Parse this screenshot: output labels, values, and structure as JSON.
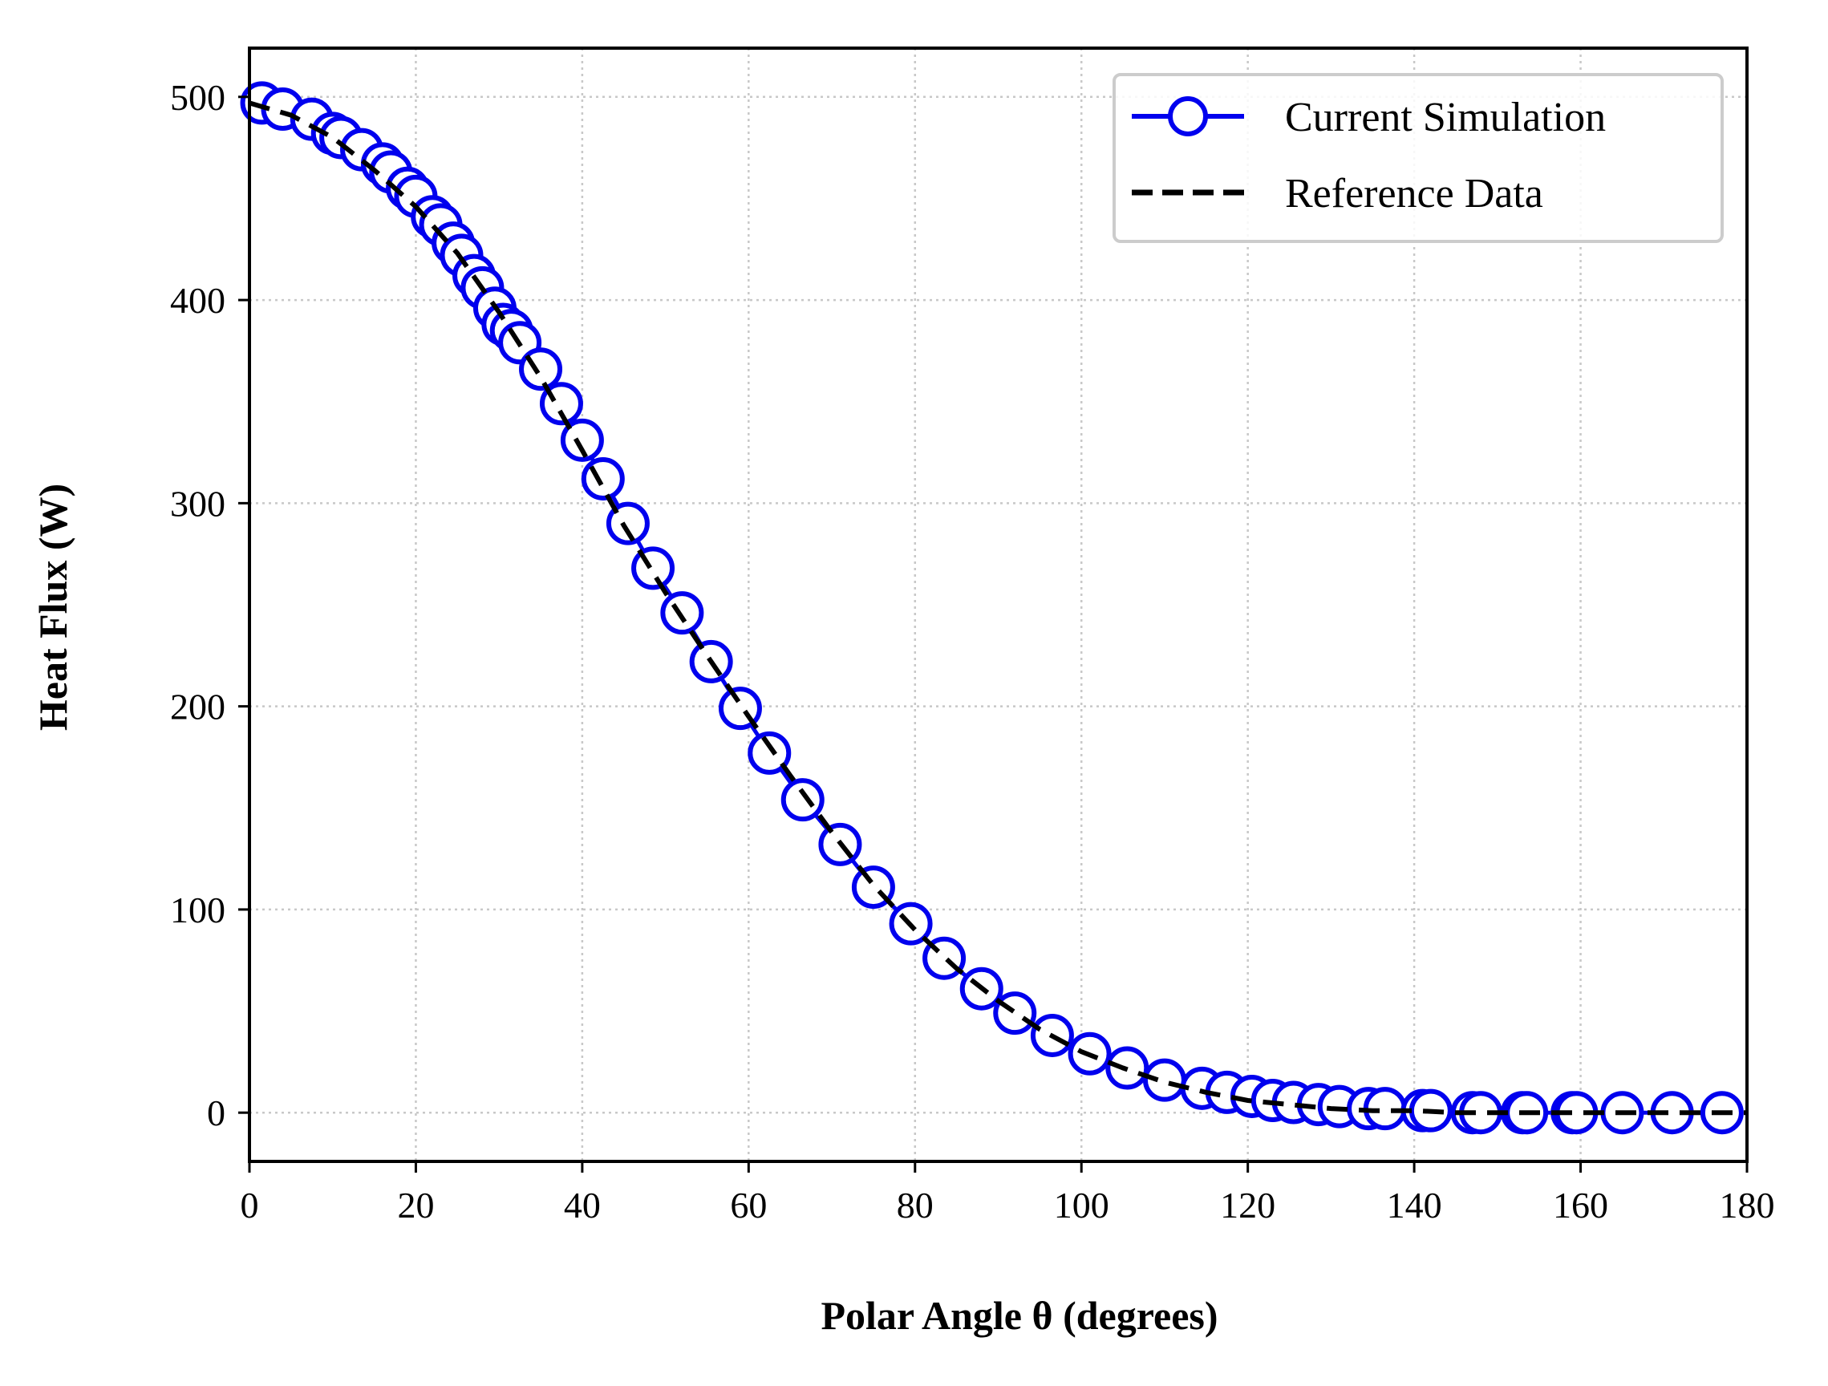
{
  "chart_data": {
    "type": "line",
    "title": "",
    "xlabel": "Polar Angle θ (degrees)",
    "ylabel": "Heat Flux (W)",
    "xlim": [
      0,
      180
    ],
    "ylim": [
      -24,
      524
    ],
    "xticks": [
      0,
      20,
      40,
      60,
      80,
      100,
      120,
      140,
      160,
      180
    ],
    "yticks": [
      0,
      100,
      200,
      300,
      400,
      500
    ],
    "grid": true,
    "legend_position": "top-right",
    "series": [
      {
        "name": "Current Simulation",
        "style": "line-with-open-circles",
        "color": "#0000ee",
        "x": [
          1.5,
          4.0,
          7.5,
          10.0,
          11.0,
          13.5,
          16.0,
          17.0,
          19.0,
          20.0,
          22.0,
          23.0,
          24.5,
          25.5,
          27.0,
          28.0,
          29.5,
          30.5,
          31.5,
          32.5,
          35.0,
          37.5,
          40.0,
          42.5,
          45.5,
          48.5,
          52.0,
          55.5,
          59.0,
          62.5,
          66.5,
          71.0,
          75.0,
          79.5,
          83.5,
          88.0,
          92.0,
          96.5,
          101.0,
          105.5,
          110.0,
          114.5,
          117.5,
          120.5,
          123.0,
          125.5,
          128.5,
          131.0,
          134.5,
          136.5,
          141.0,
          142.0,
          147.0,
          148.0,
          153.0,
          153.5,
          159.0,
          159.5,
          165.0,
          171.0,
          177.0
        ],
        "y": [
          497,
          494,
          489,
          482,
          480,
          474,
          467,
          463,
          455,
          451,
          441,
          437,
          428,
          422,
          412,
          406,
          396,
          388,
          385,
          379,
          366,
          349,
          331,
          312,
          290,
          268,
          246,
          222,
          199,
          177,
          154,
          132,
          111,
          93,
          76,
          61,
          49,
          38,
          29,
          22,
          16,
          12,
          10,
          8,
          6,
          5,
          4,
          3,
          2,
          2,
          1,
          1,
          0,
          0,
          0,
          0,
          0,
          0,
          0,
          0,
          0
        ]
      },
      {
        "name": "Reference Data",
        "style": "dashed",
        "color": "#000000",
        "x": [
          0,
          5,
          10,
          15,
          20,
          25,
          30,
          35,
          40,
          45,
          50,
          55,
          60,
          65,
          70,
          75,
          80,
          85,
          90,
          95,
          100,
          105,
          110,
          115,
          120,
          125,
          130,
          135,
          140,
          145,
          150,
          155,
          160,
          165,
          170,
          175,
          180
        ],
        "y": [
          497,
          491,
          480,
          464,
          446,
          423,
          394,
          362,
          326,
          289,
          256,
          225,
          195,
          166,
          138,
          112,
          90,
          71,
          55,
          41,
          30,
          22,
          15,
          10,
          6,
          4,
          2,
          1,
          1,
          0,
          0,
          0,
          0,
          0,
          0,
          0,
          0
        ]
      }
    ]
  }
}
